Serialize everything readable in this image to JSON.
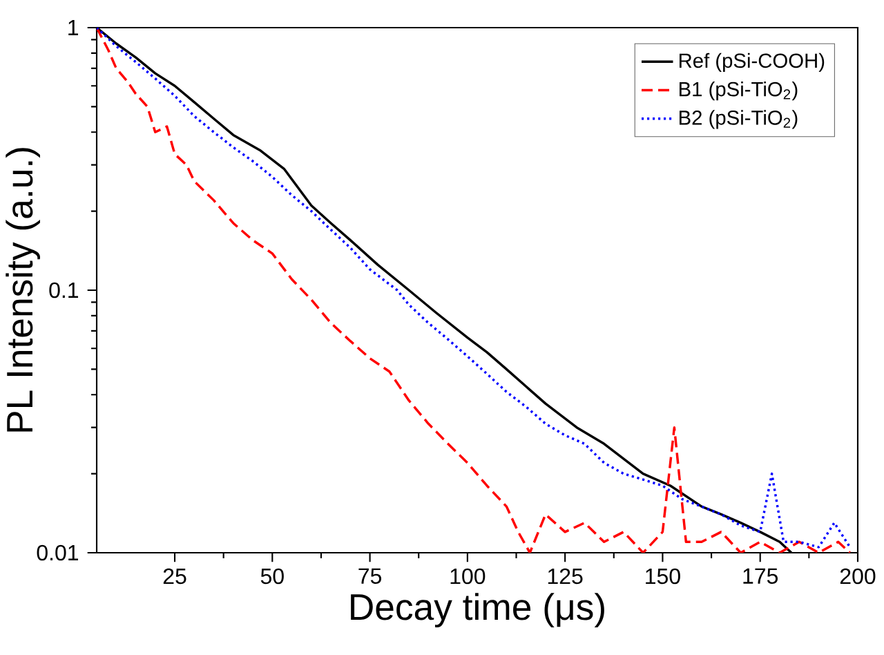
{
  "chart_data": {
    "type": "line",
    "xlabel": "Decay time (μs)",
    "ylabel": "PL Intensity (a.u.)",
    "log": "y",
    "xlim": [
      5,
      200
    ],
    "ylim": [
      0.01,
      1
    ],
    "xticks": [
      25,
      50,
      75,
      100,
      125,
      150,
      175,
      200
    ],
    "yticks": [
      0.01,
      0.1,
      1
    ],
    "legend": "top right",
    "marker": "none",
    "grid": false,
    "series": [
      {
        "name": "Ref (pSi-COOH)",
        "color": "#000000",
        "line_style": "solid",
        "x": [
          5,
          10,
          15,
          20,
          25,
          30,
          35,
          40,
          47,
          53,
          60,
          65,
          70,
          77,
          85,
          92,
          100,
          105,
          110,
          115,
          120,
          128,
          135,
          145,
          152,
          160,
          165,
          170,
          175,
          180,
          183
        ],
        "values": [
          1,
          0.87,
          0.77,
          0.67,
          0.6,
          0.52,
          0.45,
          0.39,
          0.34,
          0.29,
          0.21,
          0.18,
          0.155,
          0.125,
          0.1,
          0.082,
          0.066,
          0.058,
          0.05,
          0.043,
          0.037,
          0.03,
          0.026,
          0.02,
          0.018,
          0.015,
          0.014,
          0.013,
          0.012,
          0.011,
          0.01
        ]
      },
      {
        "name": "B1  (pSi-TiO$_{2}$)",
        "color": "#ff0000",
        "line_style": "dashed",
        "x": [
          5,
          8,
          10,
          13,
          15,
          18,
          20,
          23,
          25,
          28,
          30,
          35,
          40,
          45,
          50,
          55,
          60,
          65,
          70,
          75,
          80,
          85,
          90,
          95,
          100,
          105,
          110,
          113,
          116,
          120,
          125,
          130,
          135,
          140,
          145,
          150,
          153,
          156,
          160,
          165,
          170,
          175,
          180,
          185,
          190,
          195,
          198
        ],
        "values": [
          1,
          0.82,
          0.7,
          0.62,
          0.56,
          0.5,
          0.4,
          0.42,
          0.33,
          0.3,
          0.26,
          0.22,
          0.18,
          0.155,
          0.138,
          0.11,
          0.092,
          0.075,
          0.064,
          0.055,
          0.049,
          0.038,
          0.031,
          0.026,
          0.022,
          0.018,
          0.015,
          0.012,
          0.01,
          0.014,
          0.012,
          0.013,
          0.011,
          0.012,
          0.01,
          0.012,
          0.03,
          0.011,
          0.011,
          0.012,
          0.01,
          0.011,
          0.01,
          0.011,
          0.01,
          0.011,
          0.01
        ]
      },
      {
        "name": "B2  (pSi-TiO$_{2}$)",
        "color": "#0000ff",
        "line_style": "dotted",
        "x": [
          5,
          10,
          15,
          20,
          25,
          30,
          35,
          40,
          45,
          50,
          55,
          60,
          65,
          70,
          75,
          82,
          85,
          90,
          95,
          100,
          105,
          110,
          115,
          120,
          125,
          130,
          135,
          140,
          145,
          150,
          155,
          160,
          165,
          170,
          175,
          178,
          181,
          185,
          190,
          194,
          198
        ],
        "values": [
          1,
          0.85,
          0.74,
          0.64,
          0.55,
          0.46,
          0.4,
          0.35,
          0.31,
          0.27,
          0.23,
          0.2,
          0.17,
          0.145,
          0.12,
          0.1,
          0.088,
          0.075,
          0.065,
          0.056,
          0.048,
          0.041,
          0.036,
          0.031,
          0.028,
          0.026,
          0.022,
          0.02,
          0.019,
          0.018,
          0.016,
          0.015,
          0.014,
          0.0127,
          0.012,
          0.02,
          0.011,
          0.011,
          0.0105,
          0.013,
          0.0105
        ]
      }
    ]
  }
}
